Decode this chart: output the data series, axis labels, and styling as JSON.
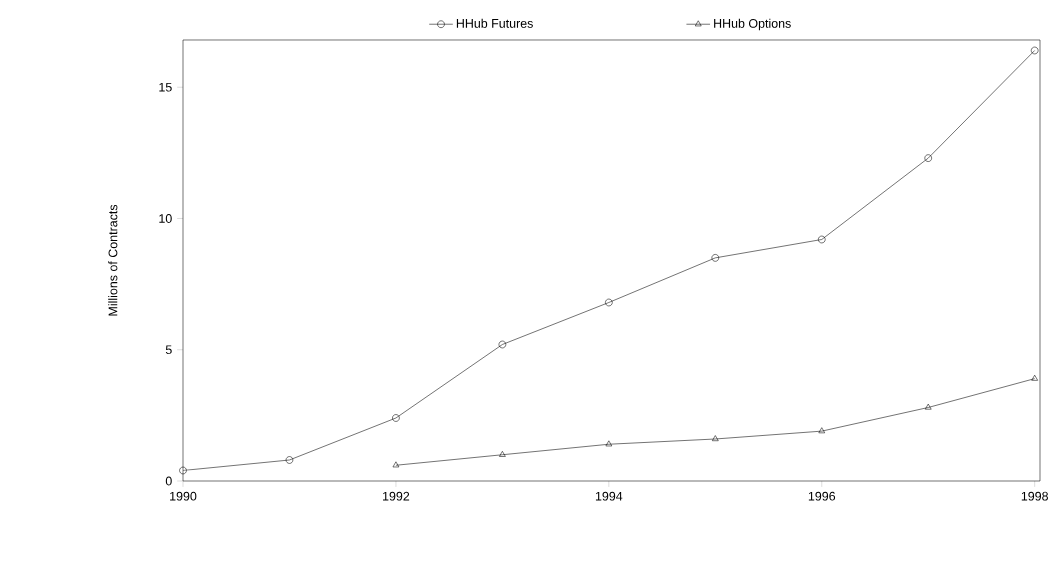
{
  "chart_data": {
    "type": "line",
    "ylabel": "Millions of Contracts",
    "x": [
      1990,
      1991,
      1992,
      1993,
      1994,
      1995,
      1996,
      1997,
      1998
    ],
    "series": [
      {
        "name": "HHub Futures",
        "color": "#000000",
        "marker": "circle",
        "values": [
          0.4,
          0.8,
          2.4,
          5.2,
          6.8,
          8.5,
          9.2,
          12.3,
          16.4
        ]
      },
      {
        "name": "HHub Options",
        "color": "#000000",
        "marker": "triangle",
        "values": [
          null,
          null,
          0.6,
          1.0,
          1.4,
          1.6,
          1.9,
          2.8,
          3.9
        ]
      }
    ],
    "xlim": [
      1990,
      1998.05
    ],
    "ylim": [
      0,
      16.8
    ],
    "xticks": [
      1990,
      1992,
      1994,
      1996,
      1998
    ],
    "yticks": [
      0,
      5,
      10,
      15
    ],
    "legend": "top",
    "grid": false,
    "line_style": "solid"
  }
}
